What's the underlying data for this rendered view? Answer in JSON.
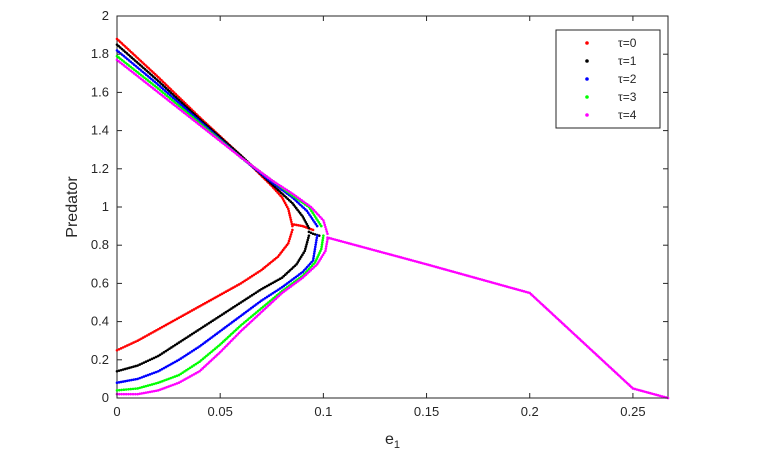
{
  "chart_data": {
    "type": "scatter",
    "xlabel": "e",
    "xlabel_subscript": "1",
    "ylabel": "Predator",
    "xlim": [
      0,
      0.267
    ],
    "ylim": [
      0,
      2
    ],
    "x_ticks": [
      "0",
      "0.05",
      "0.1",
      "0.15",
      "0.2",
      "0.25"
    ],
    "x_tick_values": [
      0,
      0.05,
      0.1,
      0.15,
      0.2,
      0.25
    ],
    "y_ticks": [
      "0",
      "0.2",
      "0.4",
      "0.6",
      "0.8",
      "1",
      "1.2",
      "1.4",
      "1.6",
      "1.8",
      "2"
    ],
    "y_tick_values": [
      0,
      0.2,
      0.4,
      0.6,
      0.8,
      1,
      1.2,
      1.4,
      1.6,
      1.8,
      2
    ],
    "grid": false,
    "legend_position": "top-right",
    "series": [
      {
        "name": "τ=0",
        "color": "#ff0000",
        "upper": [
          [
            0,
            1.88
          ],
          [
            0.02,
            1.68
          ],
          [
            0.04,
            1.47
          ],
          [
            0.06,
            1.27
          ],
          [
            0.075,
            1.11
          ],
          [
            0.08,
            1.05
          ],
          [
            0.083,
            0.99
          ],
          [
            0.085,
            0.9
          ]
        ],
        "lower": [
          [
            0,
            0.25
          ],
          [
            0.01,
            0.3
          ],
          [
            0.02,
            0.36
          ],
          [
            0.03,
            0.42
          ],
          [
            0.04,
            0.48
          ],
          [
            0.05,
            0.54
          ],
          [
            0.06,
            0.6
          ],
          [
            0.07,
            0.67
          ],
          [
            0.078,
            0.74
          ],
          [
            0.083,
            0.81
          ],
          [
            0.085,
            0.88
          ]
        ],
        "stable": [
          [
            0.085,
            0.91
          ],
          [
            0.09,
            0.9
          ],
          [
            0.095,
            0.88
          ]
        ]
      },
      {
        "name": "τ=1",
        "color": "#000000",
        "upper": [
          [
            0,
            1.85
          ],
          [
            0.02,
            1.66
          ],
          [
            0.04,
            1.46
          ],
          [
            0.06,
            1.27
          ],
          [
            0.075,
            1.12
          ],
          [
            0.085,
            1.02
          ],
          [
            0.09,
            0.95
          ],
          [
            0.093,
            0.89
          ]
        ],
        "lower": [
          [
            0,
            0.14
          ],
          [
            0.01,
            0.17
          ],
          [
            0.02,
            0.22
          ],
          [
            0.03,
            0.29
          ],
          [
            0.04,
            0.36
          ],
          [
            0.05,
            0.43
          ],
          [
            0.06,
            0.5
          ],
          [
            0.07,
            0.57
          ],
          [
            0.08,
            0.63
          ],
          [
            0.087,
            0.7
          ],
          [
            0.091,
            0.77
          ],
          [
            0.093,
            0.85
          ]
        ],
        "stable": [
          [
            0.093,
            0.87
          ],
          [
            0.095,
            0.86
          ],
          [
            0.098,
            0.85
          ]
        ]
      },
      {
        "name": "τ=2",
        "color": "#0000ff",
        "upper": [
          [
            0,
            1.82
          ],
          [
            0.02,
            1.64
          ],
          [
            0.04,
            1.45
          ],
          [
            0.06,
            1.26
          ],
          [
            0.075,
            1.13
          ],
          [
            0.085,
            1.05
          ],
          [
            0.092,
            0.98
          ],
          [
            0.097,
            0.9
          ]
        ],
        "lower": [
          [
            0,
            0.08
          ],
          [
            0.01,
            0.1
          ],
          [
            0.02,
            0.14
          ],
          [
            0.03,
            0.2
          ],
          [
            0.04,
            0.27
          ],
          [
            0.05,
            0.35
          ],
          [
            0.06,
            0.43
          ],
          [
            0.07,
            0.51
          ],
          [
            0.08,
            0.58
          ],
          [
            0.09,
            0.66
          ],
          [
            0.095,
            0.72
          ],
          [
            0.097,
            0.85
          ]
        ],
        "stable": []
      },
      {
        "name": "τ=3",
        "color": "#00ff00",
        "upper": [
          [
            0,
            1.79
          ],
          [
            0.02,
            1.62
          ],
          [
            0.04,
            1.44
          ],
          [
            0.06,
            1.26
          ],
          [
            0.075,
            1.14
          ],
          [
            0.085,
            1.06
          ],
          [
            0.093,
            1.0
          ],
          [
            0.099,
            0.9
          ]
        ],
        "lower": [
          [
            0,
            0.04
          ],
          [
            0.01,
            0.05
          ],
          [
            0.02,
            0.08
          ],
          [
            0.03,
            0.12
          ],
          [
            0.04,
            0.19
          ],
          [
            0.05,
            0.28
          ],
          [
            0.06,
            0.38
          ],
          [
            0.07,
            0.47
          ],
          [
            0.08,
            0.56
          ],
          [
            0.09,
            0.64
          ],
          [
            0.096,
            0.71
          ],
          [
            0.099,
            0.78
          ],
          [
            0.1,
            0.85
          ]
        ],
        "stable": []
      },
      {
        "name": "τ=4",
        "color": "#ff00ff",
        "upper": [
          [
            0,
            1.77
          ],
          [
            0.02,
            1.6
          ],
          [
            0.04,
            1.43
          ],
          [
            0.06,
            1.26
          ],
          [
            0.075,
            1.14
          ],
          [
            0.085,
            1.07
          ],
          [
            0.094,
            1.0
          ],
          [
            0.1,
            0.93
          ],
          [
            0.102,
            0.86
          ]
        ],
        "lower": [
          [
            0,
            0.02
          ],
          [
            0.01,
            0.02
          ],
          [
            0.02,
            0.04
          ],
          [
            0.03,
            0.08
          ],
          [
            0.04,
            0.14
          ],
          [
            0.05,
            0.24
          ],
          [
            0.06,
            0.35
          ],
          [
            0.07,
            0.45
          ],
          [
            0.08,
            0.55
          ],
          [
            0.09,
            0.63
          ],
          [
            0.097,
            0.7
          ],
          [
            0.101,
            0.77
          ],
          [
            0.102,
            0.83
          ]
        ],
        "stable": [
          [
            0.102,
            0.84
          ],
          [
            0.15,
            0.7
          ],
          [
            0.2,
            0.55
          ],
          [
            0.25,
            0.05
          ],
          [
            0.267,
            0.0
          ]
        ]
      }
    ]
  }
}
